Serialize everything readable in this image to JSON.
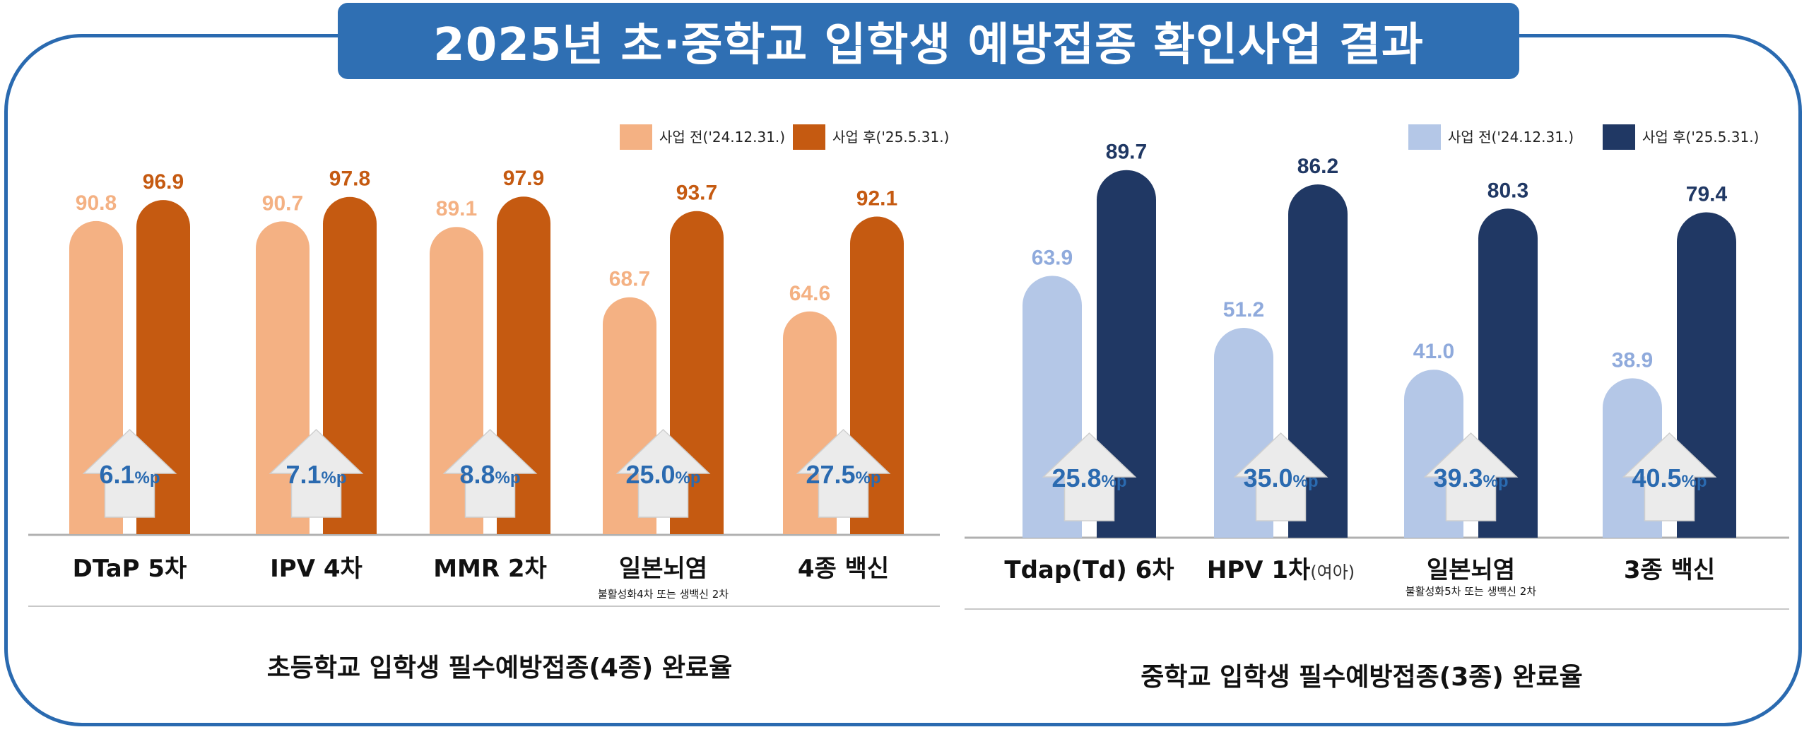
{
  "title": "2025년 초·중학교 입학생 예방접종 확인사업 결과",
  "chart_data": [
    {
      "type": "bar",
      "caption": "초등학교 입학생 필수예방접종(4종) 완료율",
      "legend": [
        "사업 전('24.12.31.)",
        "사업 후('25.5.31.)"
      ],
      "colors": {
        "before": "#f4b183",
        "before_label": "#f4b183",
        "after": "#c55a11",
        "after_label": "#c55a11"
      },
      "categories": [
        {
          "label": "DTaP 5차"
        },
        {
          "label": "IPV 4차"
        },
        {
          "label": "MMR 2차"
        },
        {
          "label": "일본뇌염",
          "note": "불활성화4차 또는 생백신 2차"
        },
        {
          "label": "4종 백신"
        }
      ],
      "series": [
        {
          "name": "사업 전('24.12.31.)",
          "values": [
            90.8,
            90.7,
            89.1,
            68.7,
            64.6
          ]
        },
        {
          "name": "사업 후('25.5.31.)",
          "values": [
            96.9,
            97.8,
            97.9,
            93.7,
            92.1
          ]
        }
      ],
      "increase": [
        {
          "value": "6.1",
          "unit": "%p"
        },
        {
          "value": "7.1",
          "unit": "%p"
        },
        {
          "value": "8.8",
          "unit": "%p"
        },
        {
          "value": "25.0",
          "unit": "%p"
        },
        {
          "value": "27.5",
          "unit": "%p"
        }
      ]
    },
    {
      "type": "bar",
      "caption": "중학교 입학생 필수예방접종(3종) 완료율",
      "legend": [
        "사업 전('24.12.31.)",
        "사업 후('25.5.31.)"
      ],
      "colors": {
        "before": "#b4c7e7",
        "before_label": "#8faadc",
        "after": "#203864",
        "after_label": "#203864"
      },
      "categories": [
        {
          "label": "Tdap(Td) 6차"
        },
        {
          "label": "HPV 1차",
          "suffix": "(여아)"
        },
        {
          "label": "일본뇌염",
          "note": "불활성화5차 또는 생백신 2차"
        },
        {
          "label": "3종 백신"
        }
      ],
      "series": [
        {
          "name": "사업 전('24.12.31.)",
          "values": [
            63.9,
            51.2,
            41.0,
            38.9
          ]
        },
        {
          "name": "사업 후('25.5.31.)",
          "values": [
            89.7,
            86.2,
            80.3,
            79.4
          ]
        }
      ],
      "increase": [
        {
          "value": "25.8",
          "unit": "%p"
        },
        {
          "value": "35.0",
          "unit": "%p"
        },
        {
          "value": "39.3",
          "unit": "%p"
        },
        {
          "value": "40.5",
          "unit": "%p"
        }
      ]
    }
  ]
}
